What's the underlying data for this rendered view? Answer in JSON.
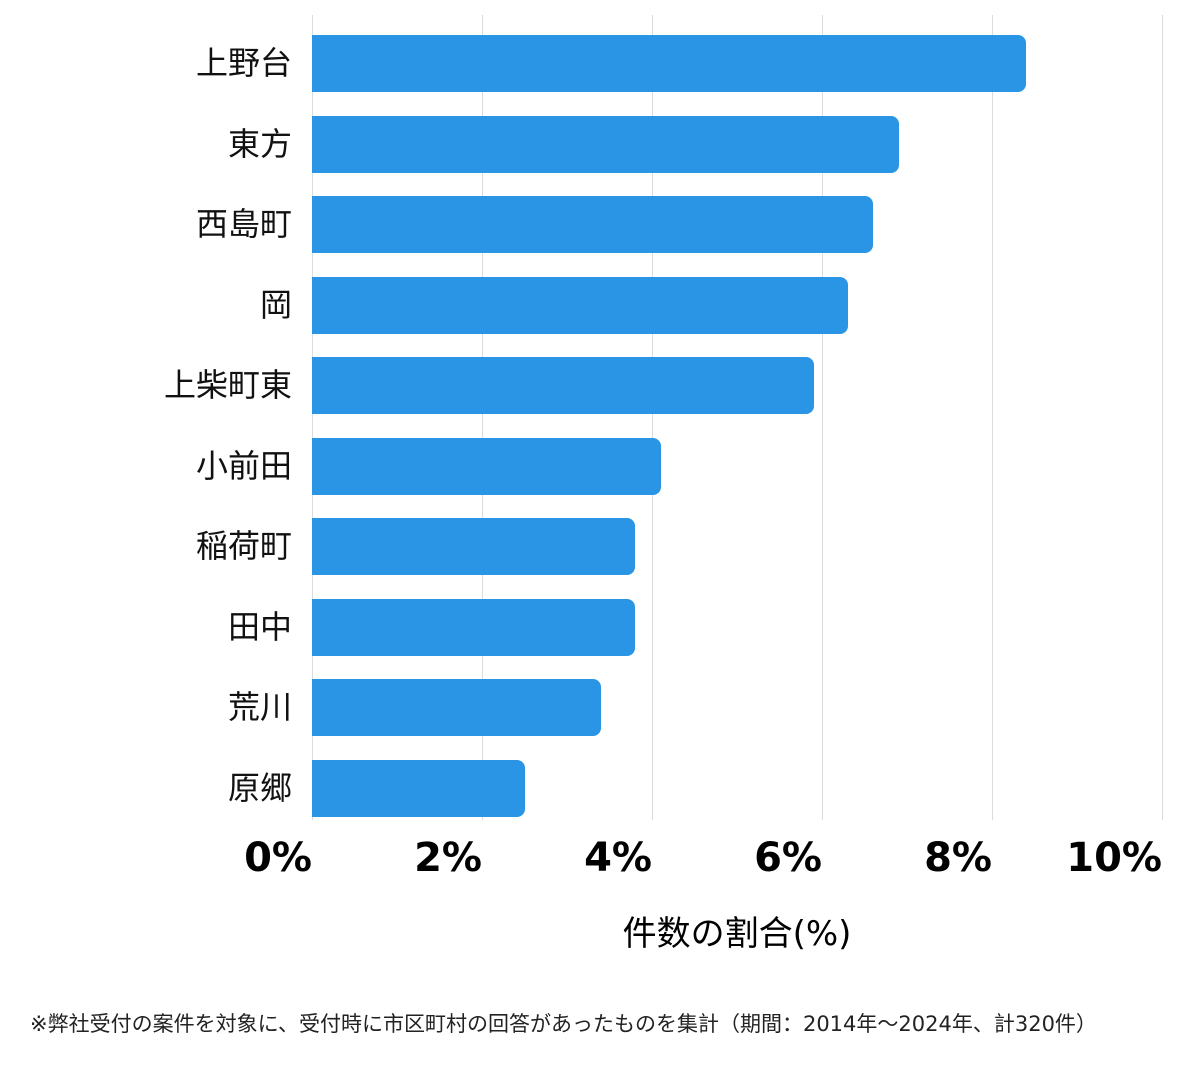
{
  "chart_data": {
    "type": "bar",
    "orientation": "horizontal",
    "categories": [
      "上野台",
      "東方",
      "西島町",
      "岡",
      "上柴町東",
      "小前田",
      "稲荷町",
      "田中",
      "荒川",
      "原郷"
    ],
    "values": [
      8.4,
      6.9,
      6.6,
      6.3,
      5.9,
      4.1,
      3.8,
      3.8,
      3.4,
      2.5
    ],
    "unit": "%",
    "xlabel": "件数の割合(%)",
    "xlim": [
      0,
      10
    ],
    "x_ticks": [
      {
        "value": 0,
        "label": "0%"
      },
      {
        "value": 2,
        "label": "2%"
      },
      {
        "value": 4,
        "label": "4%"
      },
      {
        "value": 6,
        "label": "6%"
      },
      {
        "value": 8,
        "label": "8%"
      },
      {
        "value": 10,
        "label": "10%"
      }
    ],
    "grid": "vertical",
    "legend": "none",
    "bar_color": "#2a94e5"
  },
  "footnote": "※弊社受付の案件を対象に、受付時に市区町村の回答があったものを集計（期間：2014年〜2024年、計320件）",
  "colors": {
    "bar": "#2a94e5",
    "gridline": "#dbdbdb",
    "axis_text": "#000000",
    "category_text": "#111111",
    "footnote_text": "#222222",
    "background": "#ffffff"
  }
}
